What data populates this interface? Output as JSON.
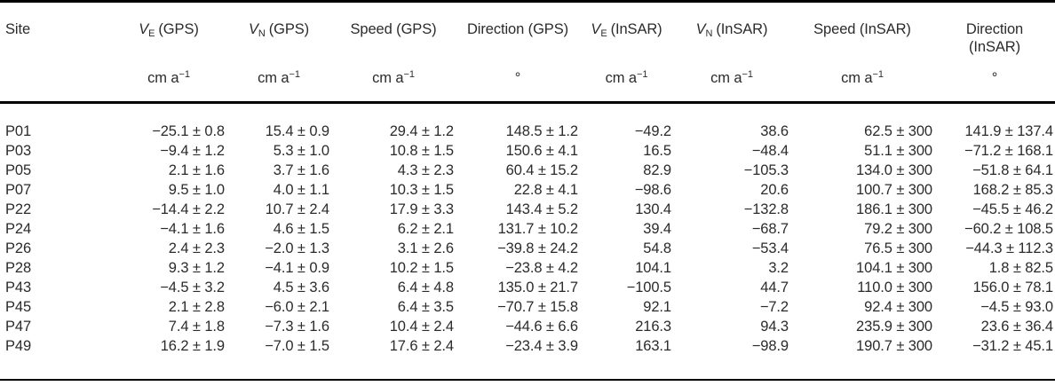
{
  "colors": {
    "background": "#ffffff",
    "text": "#2b2b2b",
    "rule": "#000000"
  },
  "table": {
    "header": {
      "site": "Site",
      "v_symbol": "V",
      "sub_e": "E",
      "sub_n": "N",
      "gps_suffix": "(GPS)",
      "insar_suffix": "(InSAR)",
      "speed_gps": "Speed (GPS)",
      "direction_gps": "Direction (GPS)",
      "speed_insar": "Speed (InSAR)",
      "direction_insar_line1": "Direction",
      "direction_insar_line2": "(InSAR)",
      "units": {
        "cm_base": "cm a",
        "cm_sup": "−1",
        "degree": "°"
      }
    },
    "column_keys": [
      "site",
      "ve_gps",
      "vn_gps",
      "speed_gps",
      "dir_gps",
      "ve_insar",
      "vn_insar",
      "speed_insar",
      "dir_insar"
    ],
    "rows": [
      [
        "P01",
        "−25.1 ± 0.8",
        "15.4 ± 0.9",
        "29.4 ± 1.2",
        "148.5 ± 1.2",
        "−49.2",
        "38.6",
        "62.5 ± 300",
        "141.9 ± 137.4"
      ],
      [
        "P03",
        "−9.4 ± 1.2",
        "5.3 ± 1.0",
        "10.8 ± 1.5",
        "150.6 ± 4.1",
        "16.5",
        "−48.4",
        "51.1 ± 300",
        "−71.2 ± 168.1"
      ],
      [
        "P05",
        "2.1 ± 1.6",
        "3.7 ± 1.6",
        "4.3 ± 2.3",
        "60.4 ± 15.2",
        "82.9",
        "−105.3",
        "134.0 ± 300",
        "−51.8 ± 64.1"
      ],
      [
        "P07",
        "9.5 ± 1.0",
        "4.0 ± 1.1",
        "10.3 ± 1.5",
        "22.8 ± 4.1",
        "−98.6",
        "20.6",
        "100.7 ± 300",
        "168.2 ± 85.3"
      ],
      [
        "P22",
        "−14.4 ± 2.2",
        "10.7 ± 2.4",
        "17.9 ± 3.3",
        "143.4 ± 5.2",
        "130.4",
        "−132.8",
        "186.1 ± 300",
        "−45.5 ± 46.2"
      ],
      [
        "P24",
        "−4.1 ± 1.6",
        "4.6 ± 1.5",
        "6.2 ± 2.1",
        "131.7 ± 10.2",
        "39.4",
        "−68.7",
        "79.2 ± 300",
        "−60.2 ± 108.5"
      ],
      [
        "P26",
        "2.4 ± 2.3",
        "−2.0 ± 1.3",
        "3.1 ± 2.6",
        "−39.8 ± 24.2",
        "54.8",
        "−53.4",
        "76.5 ± 300",
        "−44.3 ± 112.3"
      ],
      [
        "P28",
        "9.3 ± 1.2",
        "−4.1 ± 0.9",
        "10.2 ± 1.5",
        "−23.8 ± 4.2",
        "104.1",
        "3.2",
        "104.1 ± 300",
        "1.8 ± 82.5"
      ],
      [
        "P43",
        "−4.5 ± 3.2",
        "4.5 ± 3.6",
        "6.4 ± 4.8",
        "135.0 ± 21.7",
        "−100.5",
        "44.7",
        "110.0 ± 300",
        "156.0 ± 78.1"
      ],
      [
        "P45",
        "2.1 ± 2.8",
        "−6.0 ± 2.1",
        "6.4 ± 3.5",
        "−70.7 ± 15.8",
        "92.1",
        "−7.2",
        "92.4 ± 300",
        "−4.5 ± 93.0"
      ],
      [
        "P47",
        "7.4 ± 1.8",
        "−7.3 ± 1.6",
        "10.4 ± 2.4",
        "−44.6 ± 6.6",
        "216.3",
        "94.3",
        "235.9 ± 300",
        "23.6 ± 36.4"
      ],
      [
        "P49",
        "16.2 ± 1.9",
        "−7.0 ± 1.5",
        "17.6 ± 2.4",
        "−23.4 ± 3.9",
        "163.1",
        "−98.9",
        "190.7 ± 300",
        "−31.2 ± 45.1"
      ]
    ]
  }
}
